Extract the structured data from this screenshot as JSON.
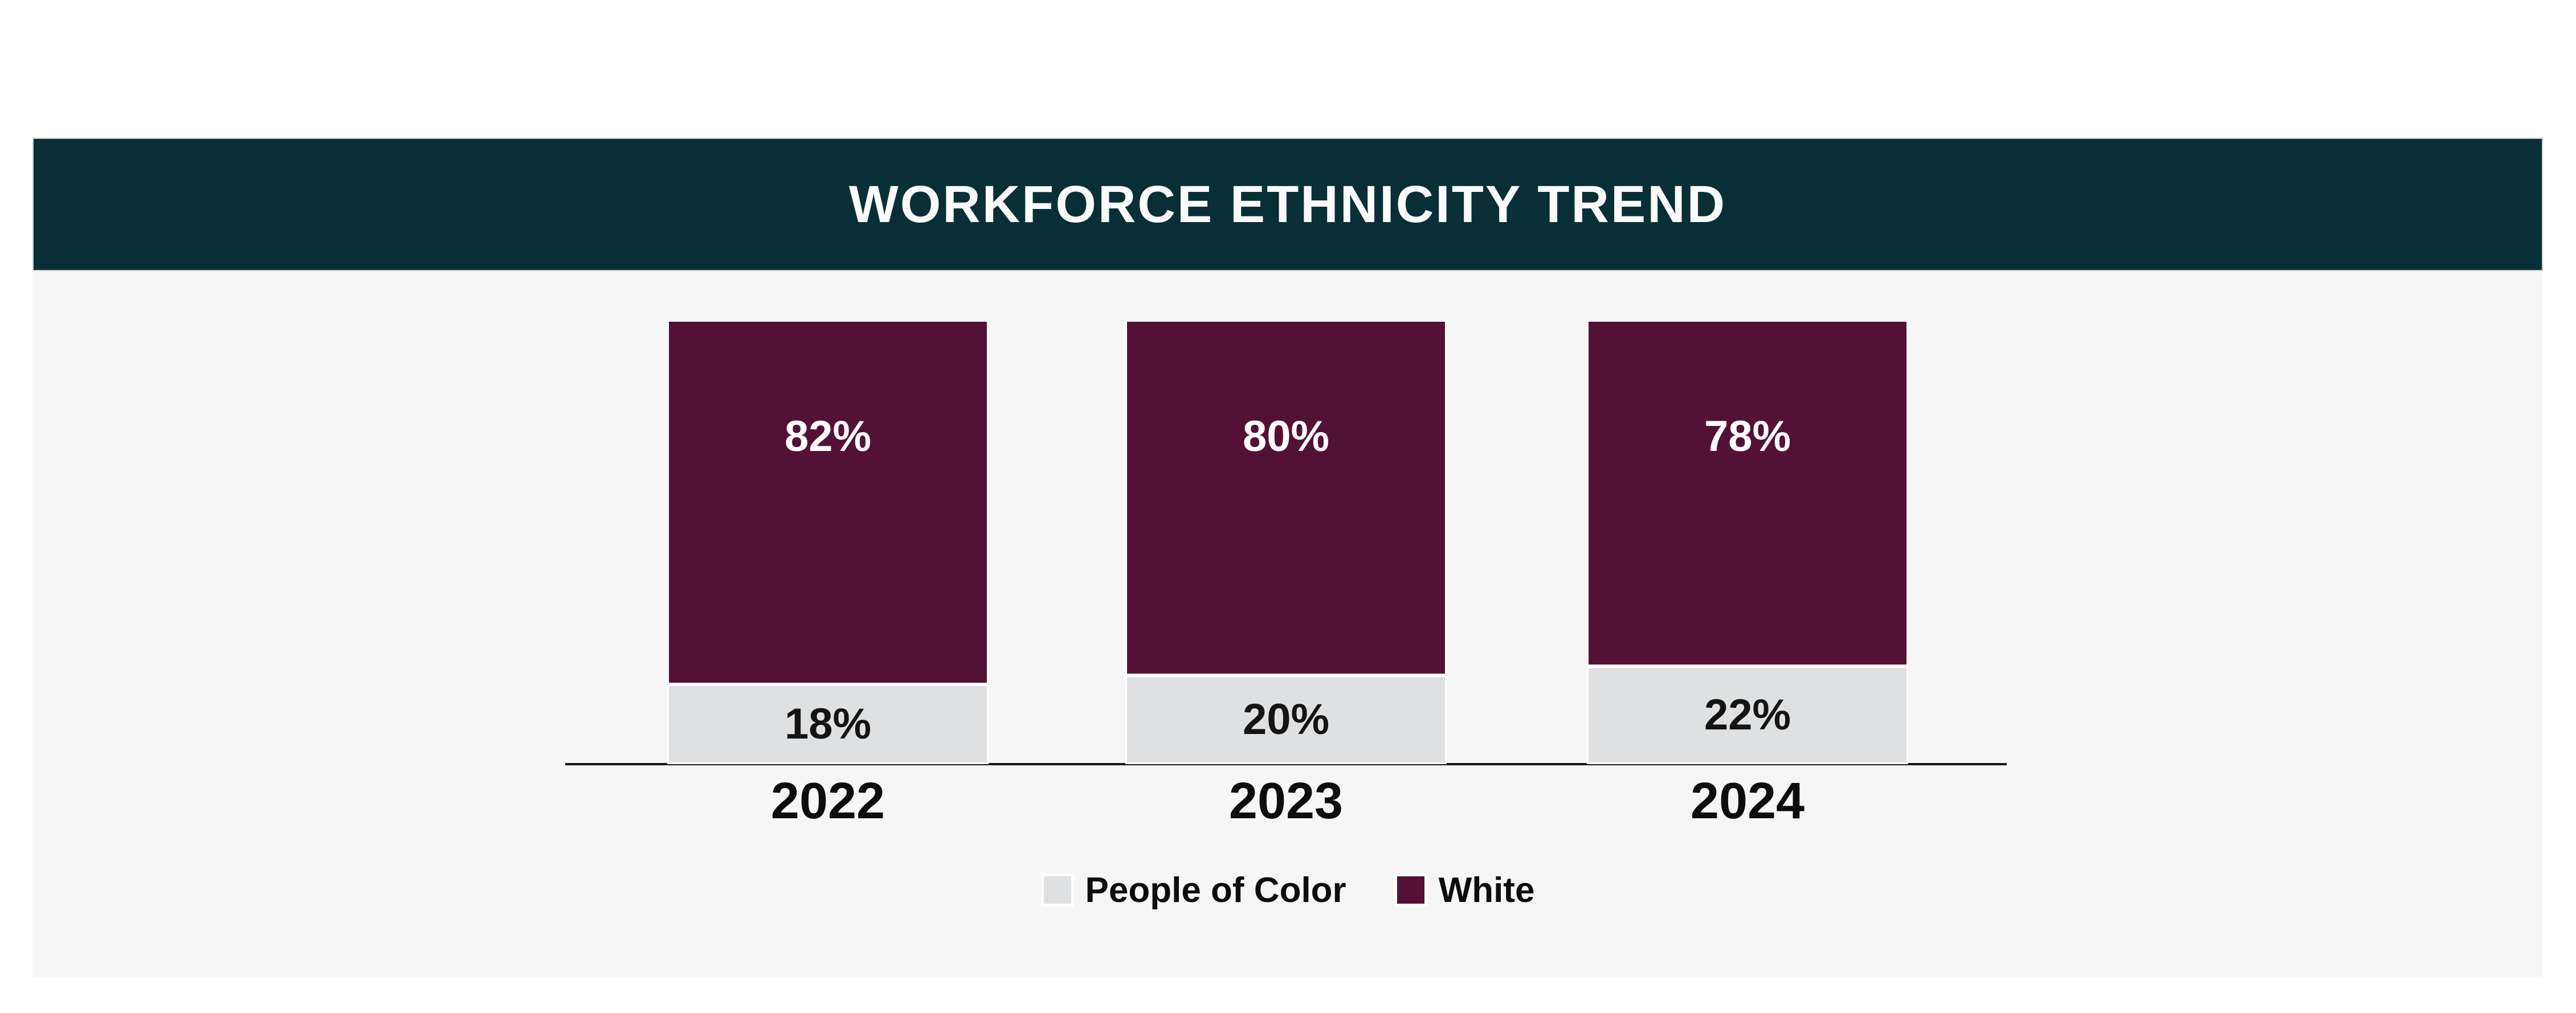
{
  "page": {
    "background": "#ffffff"
  },
  "header": {
    "title": "WORKFORCE ETHNICITY TREND",
    "background": "#092f36",
    "text_color": "#fafafa"
  },
  "panel": {
    "background": "#f6f6f6"
  },
  "chart_data": {
    "type": "bar",
    "stacked": true,
    "orientation": "vertical",
    "title": "WORKFORCE ETHNICITY TREND",
    "categories": [
      "2022",
      "2023",
      "2024"
    ],
    "series": [
      {
        "name": "White",
        "color": "#531235",
        "text_color": "#ffffff",
        "values": [
          82,
          80,
          78
        ],
        "labels": [
          "82%",
          "80%",
          "78%"
        ]
      },
      {
        "name": "People of Color",
        "color": "#dfe0e1",
        "text_color": "#141414",
        "values": [
          18,
          20,
          22
        ],
        "labels": [
          "18%",
          "20%",
          "22%"
        ]
      }
    ],
    "value_unit": "%",
    "ylim": [
      0,
      100
    ],
    "grid": false,
    "axis_line_color": "#141414",
    "xlabel": "",
    "ylabel": "",
    "legend_position": "bottom",
    "legend_items": [
      {
        "label": "People of Color",
        "color": "#dfe0e1"
      },
      {
        "label": "White",
        "color": "#531235"
      }
    ]
  }
}
